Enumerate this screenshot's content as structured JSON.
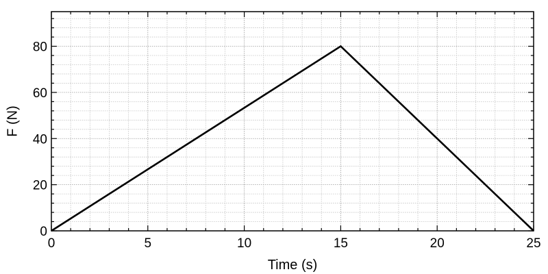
{
  "chart_data": {
    "type": "line",
    "title": "",
    "xlabel": "Time (s)",
    "ylabel": "F (N)",
    "xlim": [
      0,
      25
    ],
    "ylim": [
      0,
      95
    ],
    "xticks": [
      0,
      5,
      10,
      15,
      20,
      25
    ],
    "yticks": [
      0,
      20,
      40,
      60,
      80
    ],
    "x_minor_step": 1,
    "y_minor_step": 4,
    "grid": true,
    "grid_style": "dotted minor and major",
    "series": [
      {
        "x": [
          0,
          15,
          25
        ],
        "y": [
          0,
          80,
          0
        ],
        "color": "#000000"
      }
    ]
  }
}
